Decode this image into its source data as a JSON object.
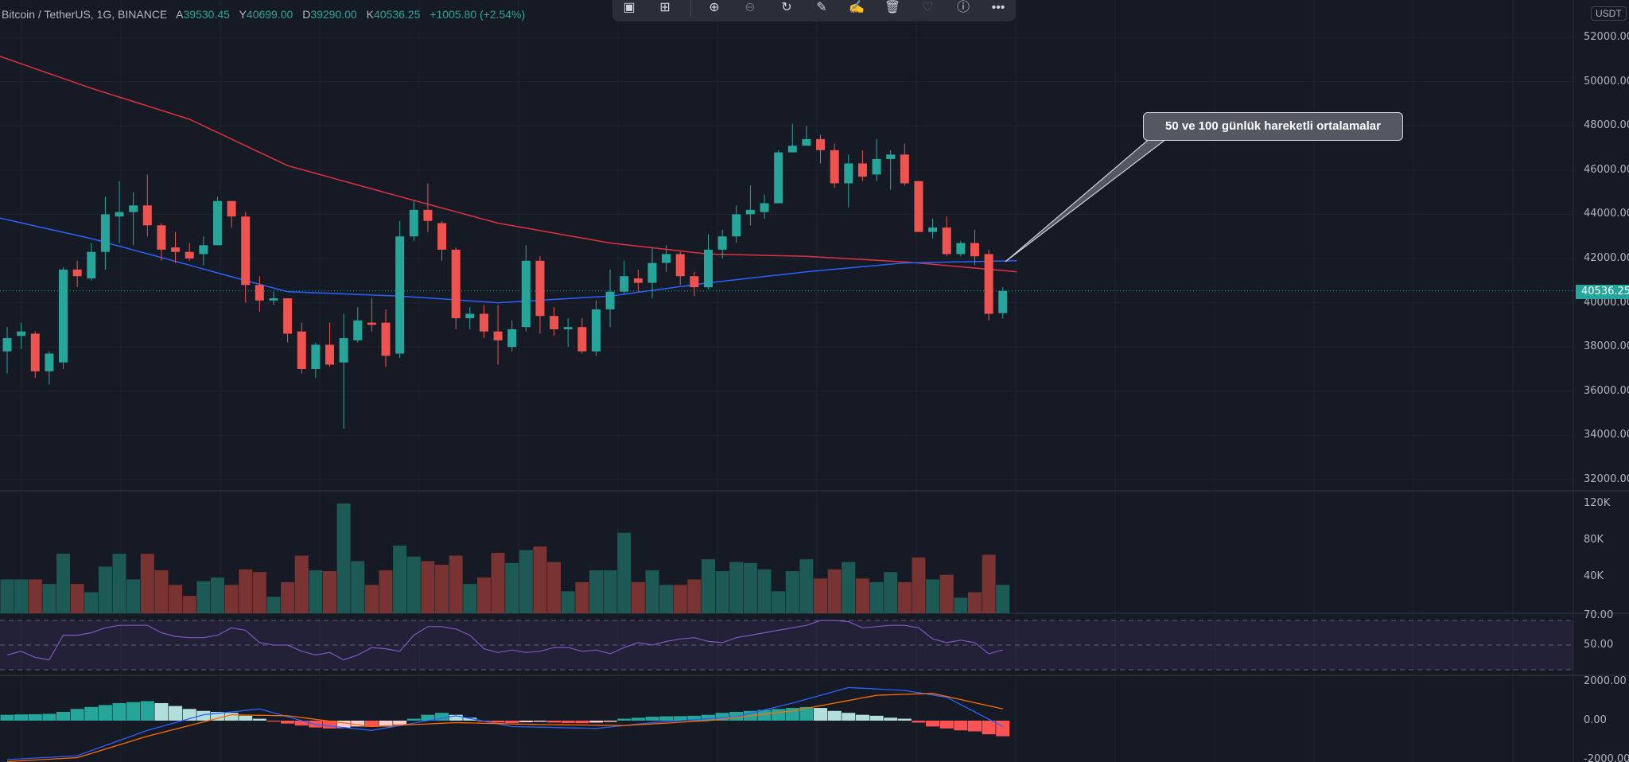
{
  "legend": {
    "symbol": "Bitcoin / TetherUS, 1G, BINANCE",
    "open_label": "A",
    "open": "39530.45",
    "high_label": "Y",
    "high": "40699.00",
    "low_label": "D",
    "low": "39290.00",
    "close_label": "K",
    "close": "40536.25",
    "change": "+1005.80 (+2.54%)"
  },
  "toolbar": {
    "icons": [
      "screenshot-icon",
      "layout-icon",
      "zoom-in-icon",
      "zoom-out-icon",
      "replay-icon",
      "edit-drawing-icon",
      "sign-icon",
      "trash-icon",
      "favorite-icon",
      "info-icon",
      "more-icon"
    ]
  },
  "annotation": {
    "text": "50 ve 100 günlük hareketli ortalamalar"
  },
  "price_axis": {
    "currency": "USDT",
    "labels": [
      "52000.00",
      "50000.00",
      "48000.00",
      "46000.00",
      "44000.00",
      "42000.00",
      "40000.00",
      "38000.00",
      "36000.00",
      "34000.00",
      "32000.00"
    ],
    "last_price": "40536.25"
  },
  "volume_axis": {
    "labels": [
      "120K",
      "80K",
      "40K"
    ]
  },
  "rsi_axis": {
    "labels": [
      "70.00",
      "50.00"
    ]
  },
  "macd_axis": {
    "labels": [
      "2000.00",
      "0.00",
      "-2000.00"
    ]
  },
  "colors": {
    "up": "#26a69a",
    "down": "#ef5350",
    "ma100": "#e0313e",
    "ma50": "#2962ff",
    "rsi": "#7e57c2",
    "macd": "#2962ff",
    "signal": "#ff6d00"
  },
  "chart_data": {
    "type": "candlestick",
    "ylim": [
      32000,
      52000
    ],
    "ohlc": [
      [
        37800,
        38900,
        36800,
        38400
      ],
      [
        38500,
        39100,
        37900,
        38700
      ],
      [
        38600,
        38700,
        36600,
        36900
      ],
      [
        36900,
        37800,
        36300,
        37700
      ],
      [
        37300,
        41600,
        37000,
        41500
      ],
      [
        41500,
        41900,
        40700,
        41200
      ],
      [
        41100,
        42700,
        41000,
        42300
      ],
      [
        42300,
        44800,
        41500,
        44000
      ],
      [
        43900,
        45500,
        42700,
        44100
      ],
      [
        44100,
        45000,
        42600,
        44400
      ],
      [
        44400,
        45800,
        43000,
        43500
      ],
      [
        43500,
        43600,
        41900,
        42400
      ],
      [
        42500,
        43200,
        41800,
        42300
      ],
      [
        42300,
        42700,
        41900,
        42000
      ],
      [
        42200,
        43000,
        41700,
        42600
      ],
      [
        42600,
        44800,
        42600,
        44600
      ],
      [
        44600,
        44600,
        43400,
        43900
      ],
      [
        43900,
        44100,
        40000,
        40800
      ],
      [
        40800,
        41200,
        39600,
        40100
      ],
      [
        40100,
        40500,
        39900,
        40200
      ],
      [
        40200,
        40200,
        38200,
        38600
      ],
      [
        38700,
        39100,
        36800,
        37000
      ],
      [
        37000,
        38200,
        36600,
        38100
      ],
      [
        38100,
        39100,
        37100,
        37200
      ],
      [
        37300,
        39500,
        34300,
        38400
      ],
      [
        38300,
        39800,
        38200,
        39200
      ],
      [
        39100,
        40200,
        38700,
        39000
      ],
      [
        39100,
        39700,
        37100,
        37600
      ],
      [
        37700,
        43700,
        37500,
        43000
      ],
      [
        43000,
        44600,
        42800,
        44200
      ],
      [
        44200,
        45400,
        43200,
        43700
      ],
      [
        43600,
        43700,
        41900,
        42400
      ],
      [
        42400,
        42500,
        38800,
        39300
      ],
      [
        39300,
        39800,
        38800,
        39500
      ],
      [
        39500,
        39900,
        38400,
        38700
      ],
      [
        38700,
        39900,
        37200,
        38300
      ],
      [
        38000,
        39200,
        37800,
        38800
      ],
      [
        38900,
        42600,
        38700,
        41900
      ],
      [
        41900,
        42100,
        38600,
        39400
      ],
      [
        39400,
        39800,
        38500,
        38800
      ],
      [
        38800,
        39300,
        38000,
        38900
      ],
      [
        38900,
        39300,
        37700,
        37800
      ],
      [
        37800,
        40100,
        37600,
        39700
      ],
      [
        39700,
        41500,
        38900,
        40500
      ],
      [
        40500,
        41900,
        40400,
        41200
      ],
      [
        41100,
        41500,
        40500,
        40900
      ],
      [
        40900,
        42500,
        40200,
        41800
      ],
      [
        41800,
        42600,
        41400,
        42200
      ],
      [
        42200,
        42300,
        40800,
        41200
      ],
      [
        41200,
        41400,
        40300,
        40700
      ],
      [
        40700,
        43100,
        40600,
        42400
      ],
      [
        42400,
        43300,
        42000,
        43000
      ],
      [
        43000,
        44400,
        42700,
        44000
      ],
      [
        44000,
        45300,
        43500,
        44200
      ],
      [
        44100,
        44900,
        43800,
        44500
      ],
      [
        44500,
        46900,
        44600,
        46800
      ],
      [
        46800,
        48100,
        46800,
        47100
      ],
      [
        47100,
        48000,
        47200,
        47400
      ],
      [
        47400,
        47600,
        46300,
        46900
      ],
      [
        46900,
        47200,
        45200,
        45400
      ],
      [
        45400,
        46700,
        44300,
        46300
      ],
      [
        46300,
        46900,
        45500,
        45700
      ],
      [
        45800,
        47400,
        45500,
        46500
      ],
      [
        46500,
        46900,
        45100,
        46700
      ],
      [
        46700,
        47200,
        45300,
        45400
      ],
      [
        45500,
        45500,
        43200,
        43200
      ],
      [
        43200,
        43800,
        42900,
        43400
      ],
      [
        43400,
        43900,
        42100,
        42200
      ],
      [
        42200,
        42800,
        42100,
        42700
      ],
      [
        42700,
        43300,
        41700,
        42100
      ],
      [
        42200,
        42400,
        39200,
        39500
      ],
      [
        39530,
        40699,
        39290,
        40536
      ]
    ],
    "volume_k": [
      37,
      37,
      37,
      32,
      65,
      32,
      23,
      51,
      65,
      37,
      65,
      47,
      31,
      19,
      35,
      39,
      31,
      48,
      45,
      18,
      34,
      63,
      47,
      46,
      120,
      57,
      31,
      47,
      74,
      62,
      57,
      53,
      63,
      32,
      39,
      66,
      55,
      69,
      73,
      56,
      24,
      34,
      47,
      47,
      88,
      34,
      47,
      31,
      31,
      37,
      59,
      46,
      56,
      55,
      48,
      24,
      46,
      59,
      38,
      48,
      56,
      38,
      34,
      45,
      34,
      61,
      37,
      42,
      17,
      23,
      64,
      31
    ],
    "ma100_keyframes": [
      [
        -1,
        51250
      ],
      [
        6,
        49700
      ],
      [
        13,
        48300
      ],
      [
        20,
        46200
      ],
      [
        28,
        44800
      ],
      [
        35,
        43600
      ],
      [
        43,
        42700
      ],
      [
        50,
        42200
      ],
      [
        57,
        42100
      ],
      [
        64,
        41850
      ],
      [
        72,
        41400
      ]
    ],
    "ma50_keyframes": [
      [
        -1,
        43900
      ],
      [
        6,
        42900
      ],
      [
        13,
        41700
      ],
      [
        17,
        41000
      ],
      [
        20,
        40500
      ],
      [
        28,
        40300
      ],
      [
        35,
        40000
      ],
      [
        43,
        40300
      ],
      [
        50,
        40900
      ],
      [
        57,
        41400
      ],
      [
        64,
        41800
      ],
      [
        72,
        41900
      ]
    ],
    "rsi": [
      42,
      45,
      40,
      38,
      58,
      58,
      60,
      64,
      66,
      66,
      66,
      60,
      57,
      56,
      56,
      58,
      64,
      62,
      52,
      50,
      50,
      45,
      42,
      44,
      38,
      42,
      48,
      47,
      45,
      58,
      65,
      65,
      63,
      58,
      47,
      44,
      46,
      44,
      45,
      48,
      48,
      45,
      46,
      43,
      48,
      52,
      50,
      53,
      55,
      56,
      53,
      52,
      56,
      58,
      60,
      62,
      64,
      66,
      70,
      70,
      69,
      64,
      65,
      66,
      66,
      64,
      55,
      52,
      54,
      52,
      43,
      46
    ],
    "rsi_levels": [
      70,
      50,
      30
    ],
    "macd_hist": [
      300,
      320,
      330,
      350,
      450,
      600,
      700,
      800,
      900,
      950,
      1000,
      900,
      750,
      600,
      500,
      450,
      400,
      250,
      100,
      -50,
      -150,
      -250,
      -350,
      -400,
      -380,
      -300,
      -320,
      -300,
      -200,
      100,
      300,
      400,
      300,
      150,
      -50,
      -100,
      -120,
      -80,
      -60,
      -100,
      -120,
      -130,
      -100,
      -60,
      100,
      150,
      200,
      220,
      230,
      250,
      300,
      400,
      450,
      500,
      550,
      600,
      650,
      700,
      650,
      500,
      400,
      300,
      250,
      150,
      100,
      -100,
      -300,
      -400,
      -500,
      -550,
      -700,
      -800
    ],
    "macd_keyframes": [
      [
        0,
        -2000
      ],
      [
        5,
        -1800
      ],
      [
        10,
        -500
      ],
      [
        14,
        300
      ],
      [
        18,
        600
      ],
      [
        22,
        -200
      ],
      [
        26,
        -500
      ],
      [
        30,
        0
      ],
      [
        32,
        250
      ],
      [
        36,
        -300
      ],
      [
        42,
        -400
      ],
      [
        46,
        -100
      ],
      [
        52,
        200
      ],
      [
        56,
        900
      ],
      [
        60,
        1700
      ],
      [
        64,
        1550
      ],
      [
        67,
        1200
      ],
      [
        71,
        -300
      ]
    ],
    "signal_keyframes": [
      [
        0,
        -2100
      ],
      [
        5,
        -1900
      ],
      [
        10,
        -800
      ],
      [
        16,
        300
      ],
      [
        20,
        250
      ],
      [
        26,
        -300
      ],
      [
        32,
        -100
      ],
      [
        38,
        -200
      ],
      [
        44,
        -250
      ],
      [
        50,
        0
      ],
      [
        56,
        500
      ],
      [
        62,
        1300
      ],
      [
        66,
        1400
      ],
      [
        71,
        600
      ]
    ]
  }
}
